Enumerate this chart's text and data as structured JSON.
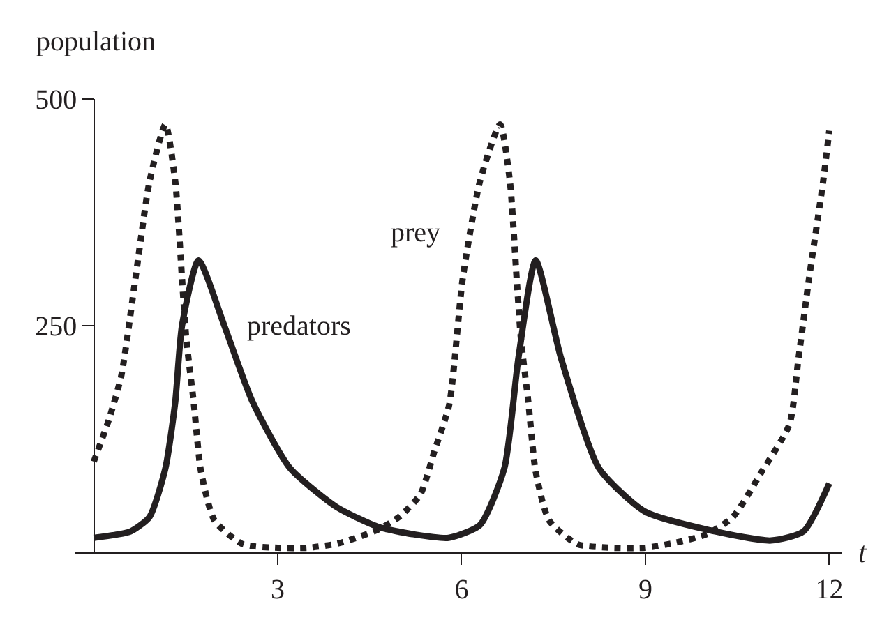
{
  "chart_data": {
    "type": "line",
    "xlabel": "t",
    "ylabel": "population",
    "xlim": [
      -0.3,
      12.2
    ],
    "ylim": [
      0,
      500
    ],
    "xticks": [
      3,
      6,
      9,
      12
    ],
    "yticks": [
      250,
      500
    ],
    "legend": false,
    "marker": "none",
    "series": [
      {
        "name": "predators",
        "color": "#231f20",
        "line_style": "solid",
        "x": [
          0,
          0.6,
          0.91,
          1.17,
          1.33,
          1.44,
          1.71,
          2.13,
          2.59,
          3.2,
          3.96,
          4.64,
          5.2,
          5.79,
          6.3,
          6.7,
          6.93,
          7.21,
          7.62,
          8.24,
          8.99,
          10.14,
          11.05,
          11.58,
          12.0
        ],
        "values": [
          16,
          23,
          39,
          93,
          166,
          250,
          322,
          250,
          166,
          93,
          50,
          28,
          20,
          16,
          30,
          93,
          215,
          322,
          215,
          93,
          45,
          23,
          13,
          23,
          76
        ]
      },
      {
        "name": "prey",
        "color": "#231f20",
        "line_style": "dotted",
        "x": [
          0,
          0.25,
          0.45,
          0.68,
          0.91,
          1.17,
          1.33,
          1.44,
          1.51,
          1.63,
          1.75,
          1.97,
          2.43,
          3.0,
          3.5,
          4.0,
          4.64,
          5.0,
          5.33,
          5.56,
          5.8,
          6.02,
          6.3,
          6.63,
          6.79,
          6.9,
          6.97,
          7.09,
          7.21,
          7.43,
          7.89,
          8.45,
          9.0,
          9.45,
          10.0,
          10.43,
          10.9,
          11.35,
          11.5,
          11.67,
          11.9,
          12.0
        ],
        "values": [
          100,
          147,
          195,
          302,
          409,
          472,
          409,
          302,
          235,
          166,
          89,
          35,
          9,
          5,
          5,
          10,
          25,
          40,
          64,
          112,
          163,
          302,
          409,
          472,
          409,
          302,
          235,
          166,
          89,
          35,
          9,
          5,
          5,
          10,
          20,
          39,
          89,
          141,
          215,
          302,
          409,
          465
        ]
      }
    ]
  }
}
